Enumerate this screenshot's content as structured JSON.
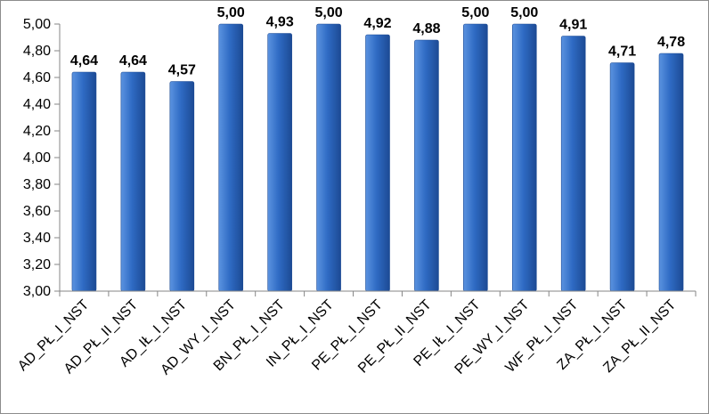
{
  "chart_data": {
    "type": "bar",
    "title": "",
    "xlabel": "",
    "ylabel": "",
    "categories": [
      "AD_PŁ_I_NST",
      "AD_PŁ_II_NST",
      "AD_IŁ_I_NST",
      "AD_WY_I_NST",
      "BN_PŁ_I_NST",
      "IN_PŁ_I_NST",
      "PE_PŁ_I_NST",
      "PE_PŁ_II_NST",
      "PE_IŁ_I_NST",
      "PE_WY_I_NST",
      "WF_PŁ_I_NST",
      "ZA_PŁ_I_NST",
      "ZA_PŁ_II_NST"
    ],
    "values": [
      4.64,
      4.64,
      4.57,
      5.0,
      4.93,
      5.0,
      4.92,
      4.88,
      5.0,
      5.0,
      4.91,
      4.71,
      4.78
    ],
    "data_labels": [
      "4,64",
      "4,64",
      "4,57",
      "5,00",
      "4,93",
      "5,00",
      "4,92",
      "4,88",
      "5,00",
      "5,00",
      "4,91",
      "4,71",
      "4,78"
    ],
    "ylim": [
      3.0,
      5.0
    ],
    "yticks": [
      3.0,
      3.2,
      3.4,
      3.6,
      3.8,
      4.0,
      4.2,
      4.4,
      4.6,
      4.8,
      5.0
    ],
    "ytick_labels": [
      "3,00",
      "3,20",
      "3,40",
      "3,60",
      "3,80",
      "4,00",
      "4,20",
      "4,40",
      "4,60",
      "4,80",
      "5,00"
    ],
    "grid": false,
    "legend": "none",
    "colors": {
      "bar_light": "#5b93e0",
      "bar_mid": "#2f6bc4",
      "bar_dark": "#1c4a94",
      "axis": "#868686"
    }
  }
}
